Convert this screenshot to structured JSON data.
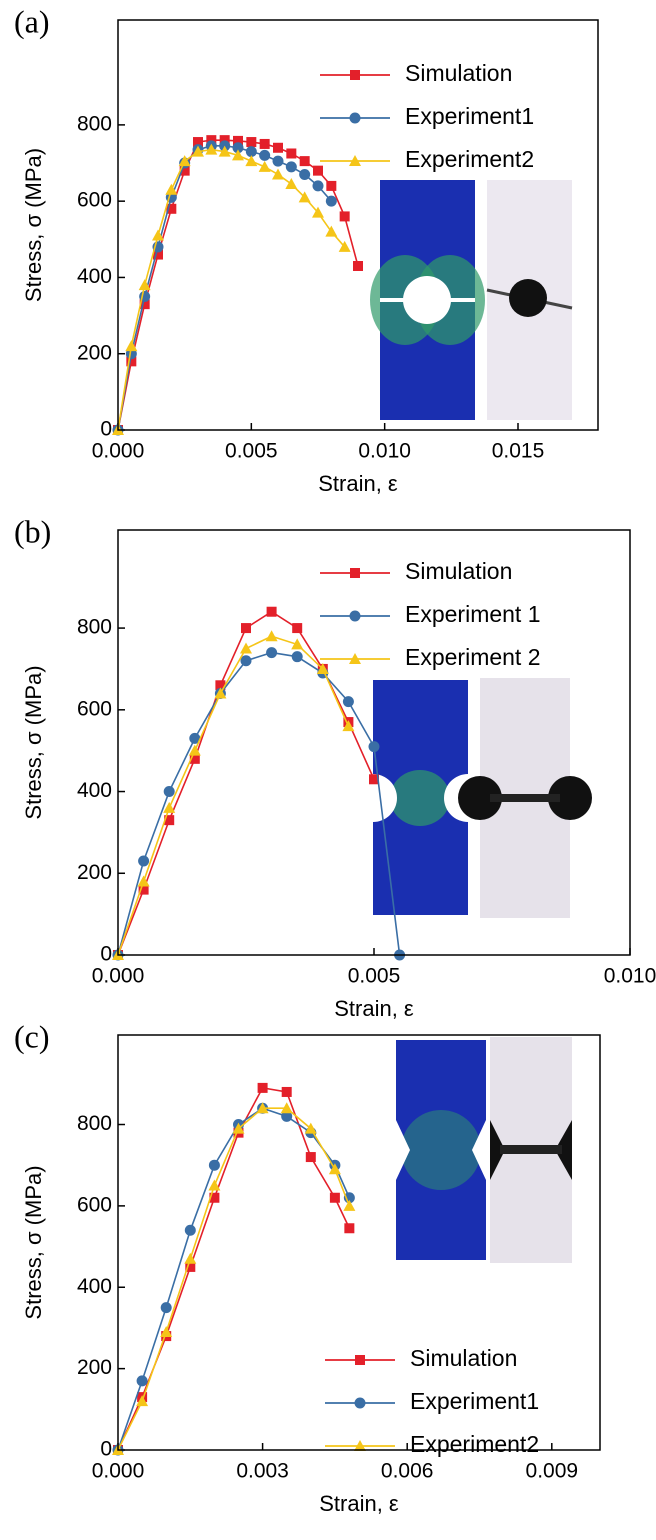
{
  "chart_data": [
    {
      "type": "line",
      "panel": "(a)",
      "x_label": "Strain, ε",
      "y_label": "Stress, σ (MPa)",
      "x": [
        0,
        0.0005,
        0.001,
        0.0015,
        0.002,
        0.0025,
        0.003,
        0.0035,
        0.004,
        0.0045,
        0.005,
        0.0055,
        0.006,
        0.0065,
        0.007,
        0.0075,
        0.008,
        0.0085,
        0.009
      ],
      "series": [
        {
          "name": "Simulation",
          "color": "#e3202a",
          "marker": "square",
          "values": [
            0,
            180,
            330,
            460,
            580,
            680,
            755,
            760,
            760,
            758,
            755,
            750,
            740,
            725,
            705,
            680,
            640,
            560,
            430
          ]
        },
        {
          "name": "Experiment1",
          "color": "#3a6ea5",
          "marker": "circle",
          "values": [
            0,
            200,
            350,
            480,
            610,
            700,
            735,
            745,
            745,
            740,
            730,
            720,
            705,
            690,
            670,
            640,
            600,
            null,
            null
          ]
        },
        {
          "name": "Experiment2",
          "color": "#f5c518",
          "marker": "triangle",
          "values": [
            0,
            220,
            380,
            510,
            630,
            705,
            730,
            735,
            730,
            720,
            705,
            690,
            670,
            645,
            610,
            570,
            520,
            480,
            null
          ]
        }
      ],
      "xlim": [
        0,
        0.018
      ],
      "ylim": [
        0,
        1075
      ],
      "xticks": [
        {
          "value": 0,
          "label": "0.000"
        },
        {
          "value": 0.005,
          "label": "0.005"
        },
        {
          "value": 0.01,
          "label": "0.010"
        },
        {
          "value": 0.015,
          "label": "0.015"
        }
      ],
      "yticks": [
        0,
        200,
        400,
        600,
        800
      ],
      "legend": "upper right"
    },
    {
      "type": "line",
      "panel": "(b)",
      "x_label": "Strain, ε",
      "y_label": "Stress, σ (MPa)",
      "x": [
        0,
        0.0005,
        0.001,
        0.0015,
        0.002,
        0.0025,
        0.003,
        0.0035,
        0.004,
        0.0045,
        0.005,
        0.0055
      ],
      "series": [
        {
          "name": "Simulation",
          "color": "#e3202a",
          "marker": "square",
          "values": [
            0,
            160,
            330,
            480,
            660,
            800,
            840,
            800,
            700,
            570,
            430,
            null
          ]
        },
        {
          "name": "Experiment 1",
          "color": "#3a6ea5",
          "marker": "circle",
          "values": [
            0,
            230,
            400,
            530,
            640,
            720,
            740,
            730,
            690,
            620,
            510,
            0
          ]
        },
        {
          "name": "Experiment 2",
          "color": "#f5c518",
          "marker": "triangle",
          "values": [
            0,
            180,
            360,
            500,
            640,
            750,
            780,
            760,
            700,
            560,
            null,
            null
          ]
        }
      ],
      "xlim": [
        0,
        0.01
      ],
      "ylim": [
        0,
        1040
      ],
      "xticks": [
        {
          "value": 0,
          "label": "0.000"
        },
        {
          "value": 0.005,
          "label": "0.005"
        },
        {
          "value": 0.01,
          "label": "0.010"
        }
      ],
      "yticks": [
        0,
        200,
        400,
        600,
        800
      ],
      "legend": "upper right"
    },
    {
      "type": "line",
      "panel": "(c)",
      "x_label": "Strain, ε",
      "y_label": "Stress, σ (MPa)",
      "x": [
        0,
        0.0005,
        0.001,
        0.0015,
        0.002,
        0.0025,
        0.003,
        0.0035,
        0.004,
        0.0045,
        0.0048
      ],
      "series": [
        {
          "name": "Simulation",
          "color": "#e3202a",
          "marker": "square",
          "values": [
            0,
            130,
            280,
            450,
            620,
            780,
            890,
            880,
            720,
            620,
            545
          ]
        },
        {
          "name": "Experiment1",
          "color": "#3a6ea5",
          "marker": "circle",
          "values": [
            0,
            170,
            350,
            540,
            700,
            800,
            840,
            820,
            780,
            700,
            620
          ]
        },
        {
          "name": "Experiment2",
          "color": "#f5c518",
          "marker": "triangle",
          "values": [
            0,
            120,
            290,
            470,
            650,
            790,
            840,
            840,
            790,
            690,
            600
          ]
        }
      ],
      "xlim": [
        0,
        0.01
      ],
      "ylim": [
        0,
        1020
      ],
      "xticks": [
        {
          "value": 0,
          "label": "0.000"
        },
        {
          "value": 0.003,
          "label": "0.003"
        },
        {
          "value": 0.006,
          "label": "0.006"
        },
        {
          "value": 0.009,
          "label": "0.009"
        }
      ],
      "yticks": [
        0,
        200,
        400,
        600,
        800
      ],
      "legend": "lower right"
    }
  ]
}
